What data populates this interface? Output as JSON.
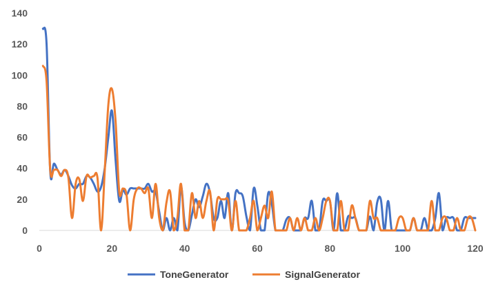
{
  "chart_data": {
    "type": "line",
    "title": "",
    "xlabel": "",
    "ylabel": "",
    "xlim": [
      0,
      120
    ],
    "ylim": [
      0,
      140
    ],
    "x_ticks": [
      0,
      20,
      40,
      60,
      80,
      100,
      120
    ],
    "y_ticks": [
      0,
      20,
      40,
      60,
      80,
      100,
      120,
      140
    ],
    "grid": false,
    "legend_position": "bottom",
    "smooth": true,
    "series": [
      {
        "name": "ToneGenerator",
        "color": "#4472C4",
        "x": [
          1,
          2,
          3,
          4,
          5,
          6,
          7,
          8,
          9,
          10,
          11,
          12,
          13,
          14,
          15,
          16,
          17,
          18,
          19,
          20,
          21,
          22,
          23,
          24,
          25,
          26,
          27,
          28,
          29,
          30,
          31,
          32,
          33,
          34,
          35,
          36,
          37,
          38,
          39,
          40,
          41,
          42,
          43,
          44,
          45,
          46,
          47,
          48,
          49,
          50,
          51,
          52,
          53,
          54,
          55,
          56,
          57,
          58,
          59,
          60,
          61,
          62,
          63,
          64,
          65,
          66,
          67,
          68,
          69,
          70,
          71,
          72,
          73,
          74,
          75,
          76,
          77,
          78,
          79,
          80,
          81,
          82,
          83,
          84,
          85,
          86,
          87,
          88,
          89,
          90,
          91,
          92,
          93,
          94,
          95,
          96,
          97,
          98,
          99,
          100,
          101,
          102,
          103,
          104,
          105,
          106,
          107,
          108,
          109,
          110,
          111,
          112,
          113,
          114,
          115,
          116,
          117,
          118,
          119,
          120
        ],
        "values": [
          130,
          120,
          38,
          43,
          39,
          36,
          39,
          35,
          29,
          27,
          30,
          30,
          35,
          34,
          30,
          25,
          28,
          40,
          60,
          77,
          45,
          19,
          26,
          23,
          27,
          27,
          27,
          27,
          27,
          30,
          25,
          25,
          12,
          0,
          8,
          0,
          8,
          0,
          28,
          5,
          0,
          10,
          20,
          15,
          22,
          30,
          24,
          8,
          8,
          19,
          8,
          24,
          0,
          24,
          24,
          22,
          9,
          0,
          27,
          16,
          0,
          0,
          24,
          17,
          0,
          0,
          0,
          7,
          8,
          0,
          0,
          0,
          8,
          8,
          19,
          0,
          0,
          19,
          19,
          19,
          0,
          24,
          0,
          0,
          9,
          8,
          8,
          0,
          0,
          0,
          9,
          0,
          18,
          20,
          0,
          19,
          0,
          0,
          0,
          0,
          0,
          0,
          8,
          0,
          0,
          8,
          0,
          0,
          8,
          24,
          0,
          8,
          8,
          8,
          0,
          0,
          8,
          8,
          8,
          8
        ]
      },
      {
        "name": "SignalGenerator",
        "color": "#ED7D31",
        "x": [
          1,
          2,
          3,
          4,
          5,
          6,
          7,
          8,
          9,
          10,
          11,
          12,
          13,
          14,
          15,
          16,
          17,
          18,
          19,
          20,
          21,
          22,
          23,
          24,
          25,
          26,
          27,
          28,
          29,
          30,
          31,
          32,
          33,
          34,
          35,
          36,
          37,
          38,
          39,
          40,
          41,
          42,
          43,
          44,
          45,
          46,
          47,
          48,
          49,
          50,
          51,
          52,
          53,
          54,
          55,
          56,
          57,
          58,
          59,
          60,
          61,
          62,
          63,
          64,
          65,
          66,
          67,
          68,
          69,
          70,
          71,
          72,
          73,
          74,
          75,
          76,
          77,
          78,
          79,
          80,
          81,
          82,
          83,
          84,
          85,
          86,
          87,
          88,
          89,
          90,
          91,
          92,
          93,
          94,
          95,
          96,
          97,
          98,
          99,
          100,
          101,
          102,
          103,
          104,
          105,
          106,
          107,
          108,
          109,
          110,
          111,
          112,
          113,
          114,
          115,
          116,
          117,
          118,
          119,
          120
        ],
        "values": [
          106,
          96,
          39,
          39,
          39,
          35,
          39,
          34,
          8,
          30,
          33,
          19,
          35,
          34,
          35,
          34,
          0,
          38,
          81,
          91,
          70,
          25,
          27,
          23,
          0,
          20,
          27,
          27,
          24,
          27,
          8,
          30,
          8,
          0,
          18,
          25,
          0,
          8,
          30,
          0,
          0,
          24,
          8,
          19,
          8,
          19,
          25,
          0,
          20,
          20,
          20,
          19,
          0,
          19,
          0,
          0,
          0,
          8,
          19,
          0,
          8,
          16,
          8,
          25,
          0,
          0,
          0,
          0,
          8,
          0,
          8,
          0,
          8,
          0,
          0,
          8,
          0,
          8,
          19,
          19,
          0,
          0,
          19,
          0,
          0,
          16,
          8,
          0,
          0,
          0,
          19,
          8,
          8,
          0,
          0,
          0,
          0,
          0,
          8,
          8,
          0,
          0,
          8,
          0,
          0,
          0,
          0,
          19,
          0,
          0,
          8,
          8,
          0,
          0,
          8,
          0,
          0,
          8,
          8,
          0
        ]
      }
    ]
  }
}
